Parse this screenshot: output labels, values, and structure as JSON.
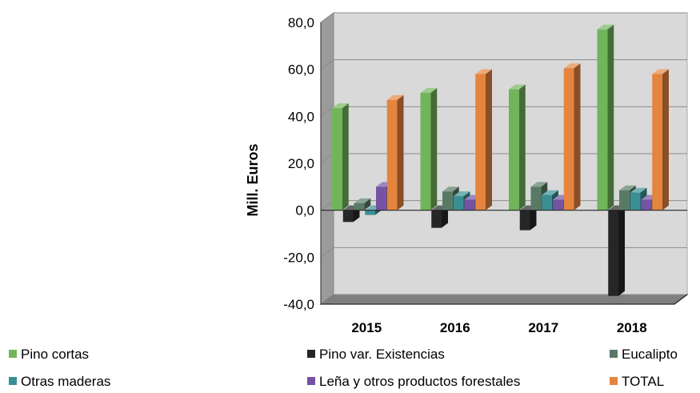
{
  "chart_data": {
    "type": "bar",
    "ylabel": "Mill.  Euros",
    "xlabel": "",
    "ylim": [
      -40,
      80
    ],
    "yticks": [
      -40,
      -20,
      0,
      20,
      40,
      60,
      80
    ],
    "ytick_labels": [
      "-40,0",
      "-20,0",
      "0,0",
      "20,0",
      "40,0",
      "60,0",
      "80,0"
    ],
    "grid": true,
    "legend_position": "bottom",
    "categories": [
      "2015",
      "2016",
      "2017",
      "2018"
    ],
    "series": [
      {
        "name": "Pino cortas",
        "color": "#71b55a",
        "values": [
          43.5,
          50.0,
          51.5,
          77.0
        ]
      },
      {
        "name": "Pino var. Existencias",
        "color": "#262626",
        "values": [
          -5.0,
          -7.5,
          -8.5,
          -36.5
        ]
      },
      {
        "name": "Eucalipto",
        "color": "#587a64",
        "values": [
          3.0,
          8.0,
          10.0,
          8.5
        ]
      },
      {
        "name": "Otras maderas",
        "color": "#3a8f95",
        "values": [
          -2.0,
          6.0,
          6.5,
          7.5
        ]
      },
      {
        "name": "Leña y otros productos forestales",
        "color": "#7553a3",
        "values": [
          10.0,
          4.5,
          4.5,
          4.5
        ]
      },
      {
        "name": "TOTAL",
        "color": "#e5843f",
        "values": [
          47.0,
          58.0,
          60.5,
          58.0
        ]
      }
    ]
  }
}
